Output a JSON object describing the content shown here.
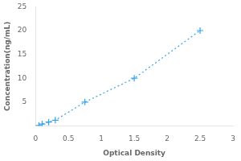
{
  "chart_data": {
    "type": "line",
    "x": [
      0.05,
      0.1,
      0.2,
      0.3,
      0.75,
      1.5,
      2.5
    ],
    "values": [
      0.1,
      0.4,
      0.8,
      1.2,
      5.0,
      10.0,
      20.0
    ],
    "xlabel": "Optical Density",
    "ylabel": "Concentration(ng/mL)",
    "xlim": [
      0,
      3
    ],
    "ylim": [
      0,
      25
    ],
    "xticks": [
      0,
      0.5,
      1,
      1.5,
      2,
      2.5,
      3
    ],
    "yticks": [
      5,
      10,
      15,
      20,
      25
    ],
    "grid": false,
    "marker": "plus",
    "line_style": "dotted"
  }
}
